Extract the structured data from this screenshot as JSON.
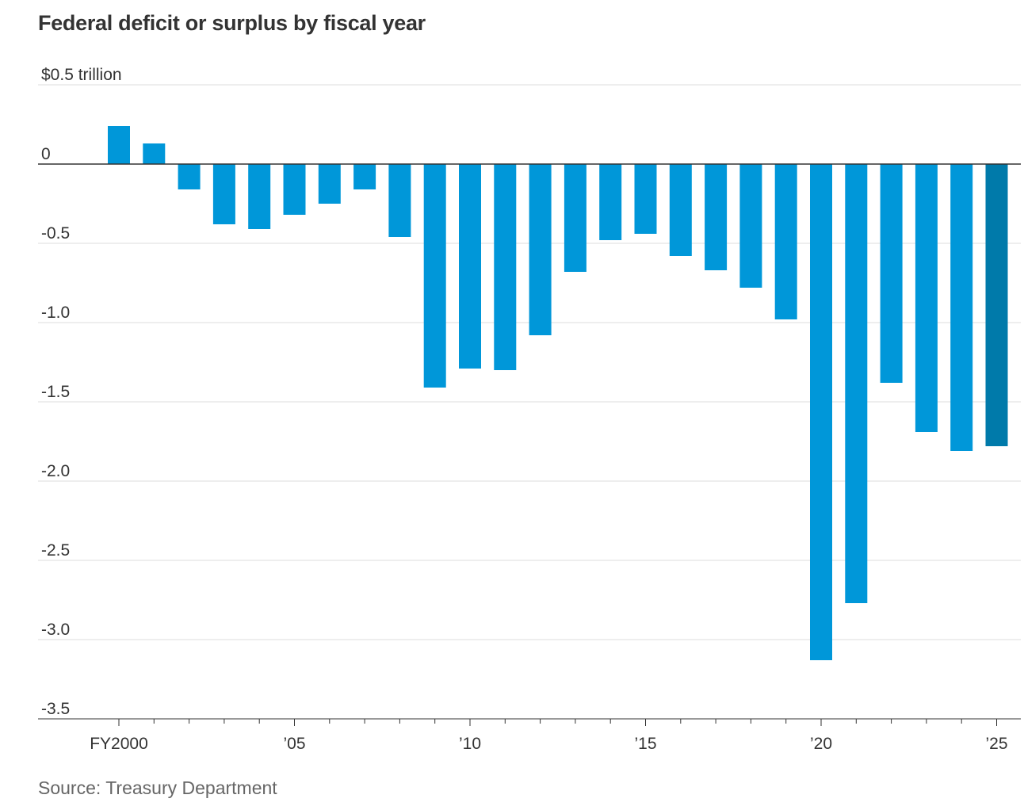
{
  "title": "Federal deficit or surplus by fiscal year",
  "source": "Source: Treasury Department",
  "colors": {
    "bar": "#0097d9",
    "highlight": "#007aaa",
    "grid": "#dddddd",
    "axis": "#333333"
  },
  "chart_data": {
    "type": "bar",
    "title": "Federal deficit or surplus by fiscal year",
    "xlabel": "",
    "ylabel": "",
    "ylim": [
      -3.5,
      0.5
    ],
    "grid": true,
    "legend": "none",
    "y_ticks": [
      {
        "value": 0.5,
        "label": "$0.5 trillion"
      },
      {
        "value": 0,
        "label": "0"
      },
      {
        "value": -0.5,
        "label": "-0.5"
      },
      {
        "value": -1.0,
        "label": "-1.0"
      },
      {
        "value": -1.5,
        "label": "-1.5"
      },
      {
        "value": -2.0,
        "label": "-2.0"
      },
      {
        "value": -2.5,
        "label": "-2.5"
      },
      {
        "value": -3.0,
        "label": "-3.0"
      },
      {
        "value": -3.5,
        "label": "-3.5"
      }
    ],
    "x_tick_labels": [
      {
        "year": 2000,
        "label": "FY2000"
      },
      {
        "year": 2005,
        "label": "’05"
      },
      {
        "year": 2010,
        "label": "’10"
      },
      {
        "year": 2015,
        "label": "’15"
      },
      {
        "year": 2020,
        "label": "’20"
      },
      {
        "year": 2025,
        "label": "’25"
      }
    ],
    "categories": [
      2000,
      2001,
      2002,
      2003,
      2004,
      2005,
      2006,
      2007,
      2008,
      2009,
      2010,
      2011,
      2012,
      2013,
      2014,
      2015,
      2016,
      2017,
      2018,
      2019,
      2020,
      2021,
      2022,
      2023,
      2024,
      2025
    ],
    "values": [
      0.24,
      0.13,
      -0.16,
      -0.38,
      -0.41,
      -0.32,
      -0.25,
      -0.16,
      -0.46,
      -1.41,
      -1.29,
      -1.3,
      -1.08,
      -0.68,
      -0.48,
      -0.44,
      -0.58,
      -0.67,
      -0.78,
      -0.98,
      -3.13,
      -2.77,
      -1.38,
      -1.69,
      -1.81,
      -1.78
    ],
    "highlight": [
      2025
    ]
  }
}
